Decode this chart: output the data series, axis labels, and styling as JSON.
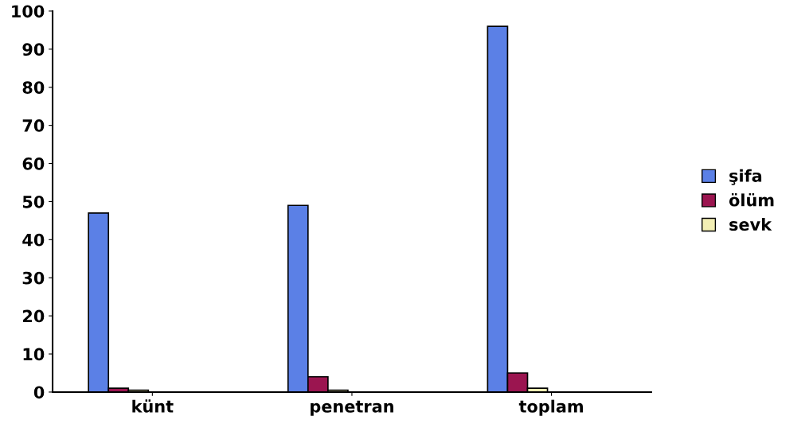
{
  "chart_data": {
    "type": "bar",
    "categories": [
      "künt",
      "penetran",
      "toplam"
    ],
    "series": [
      {
        "name": "şifa",
        "color": "#5b80e6",
        "values": [
          47,
          49,
          96
        ]
      },
      {
        "name": "ölüm",
        "color": "#9b1550",
        "values": [
          1,
          4,
          5
        ]
      },
      {
        "name": "sevk",
        "color": "#f3efb4",
        "values": [
          0.5,
          0.5,
          1
        ]
      }
    ],
    "ylim": [
      0,
      100
    ],
    "yticks": [
      0,
      10,
      20,
      30,
      40,
      50,
      60,
      70,
      80,
      90,
      100
    ],
    "grid": false,
    "legend": "right"
  }
}
